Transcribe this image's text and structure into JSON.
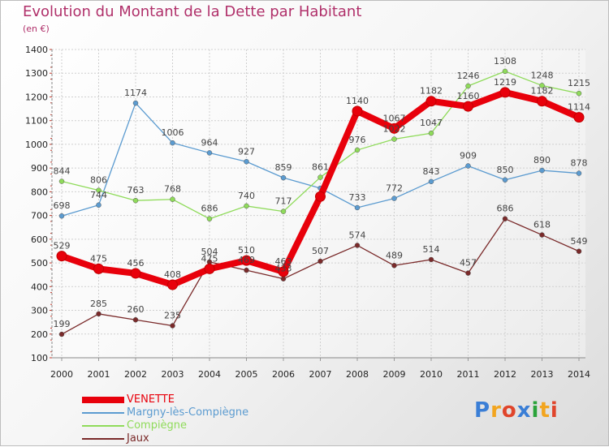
{
  "title": "Evolution du Montant de la Dette par Habitant",
  "subtitle": "(en €)",
  "logo": {
    "text": "Proxiti",
    "colors": [
      "#3a7ed6",
      "#f2a51f",
      "#e0452b",
      "#3a7ed6",
      "#2aa33a",
      "#f2a51f",
      "#e0452b"
    ]
  },
  "chart_data": {
    "type": "line",
    "title": "Evolution du Montant de la Dette par Habitant",
    "subtitle": "(en €)",
    "x": [
      "2000",
      "2001",
      "2002",
      "2003",
      "2004",
      "2005",
      "2006",
      "2007",
      "2008",
      "2009",
      "2010",
      "2011",
      "2012",
      "2013",
      "2014"
    ],
    "ylim": [
      100,
      1400
    ],
    "yticks": [
      100,
      200,
      300,
      400,
      500,
      600,
      700,
      800,
      900,
      1000,
      1100,
      1200,
      1300,
      1400
    ],
    "grid": true,
    "legend_position": "bottom-left",
    "series": [
      {
        "name": "VENETTE",
        "color": "#e8000b",
        "highlight": true,
        "values": [
          529,
          475,
          456,
          408,
          475,
          510,
          463,
          780,
          1140,
          1067,
          1182,
          1160,
          1219,
          1182,
          1114
        ],
        "labels": [
          "529",
          "475",
          "456",
          "408",
          "475",
          "510",
          "463",
          "",
          "1140",
          "1067",
          "1182",
          "1160",
          "1219",
          "1182",
          "1114"
        ]
      },
      {
        "name": "Margny-lès-Compiègne",
        "color": "#5b9bd0",
        "highlight": false,
        "values": [
          698,
          744,
          1174,
          1006,
          964,
          927,
          859,
          815,
          733,
          772,
          843,
          909,
          850,
          890,
          878
        ],
        "labels": [
          "698",
          "744",
          "1174",
          "1006",
          "964",
          "927",
          "859",
          "",
          "733",
          "772",
          "843",
          "909",
          "850",
          "890",
          "878"
        ]
      },
      {
        "name": "Compiègne",
        "color": "#8fdb5a",
        "highlight": false,
        "values": [
          844,
          806,
          763,
          768,
          686,
          740,
          717,
          861,
          976,
          1022,
          1047,
          1246,
          1308,
          1248,
          1215
        ],
        "labels": [
          "844",
          "806",
          "763",
          "768",
          "686",
          "740",
          "717",
          "861",
          "976",
          "1022",
          "1047",
          "1246",
          "1308",
          "1248",
          "1215"
        ]
      },
      {
        "name": "Jaux",
        "color": "#7a2a2a",
        "highlight": false,
        "values": [
          199,
          285,
          260,
          235,
          504,
          469,
          433,
          507,
          574,
          489,
          514,
          457,
          686,
          618,
          549
        ],
        "labels": [
          "199",
          "285",
          "260",
          "235",
          "504",
          "469",
          "433",
          "507",
          "574",
          "489",
          "514",
          "457",
          "686",
          "618",
          "549"
        ]
      }
    ]
  }
}
